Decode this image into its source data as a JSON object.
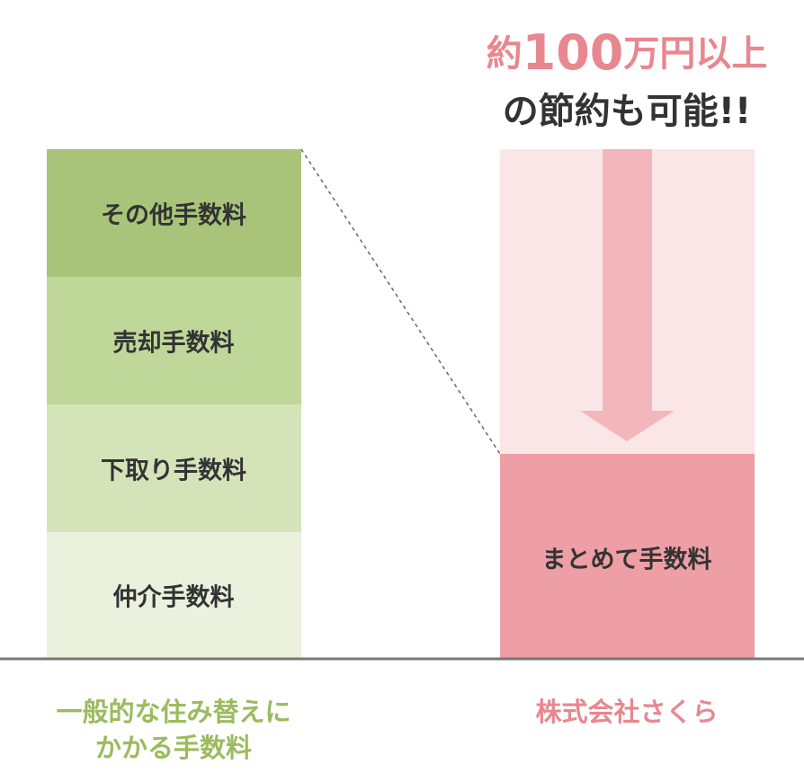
{
  "headline": {
    "line1": [
      "約",
      "100",
      "万円以上"
    ],
    "line2": "の節約も可能!!"
  },
  "left": {
    "segments": [
      "その他手数料",
      "売却手数料",
      "下取り手数料",
      "仲介手数料"
    ],
    "label": [
      "一般的な住み替えに",
      "かかる手数料"
    ]
  },
  "right": {
    "segment": "まとめて手数料",
    "label": "株式会社さくら"
  }
}
